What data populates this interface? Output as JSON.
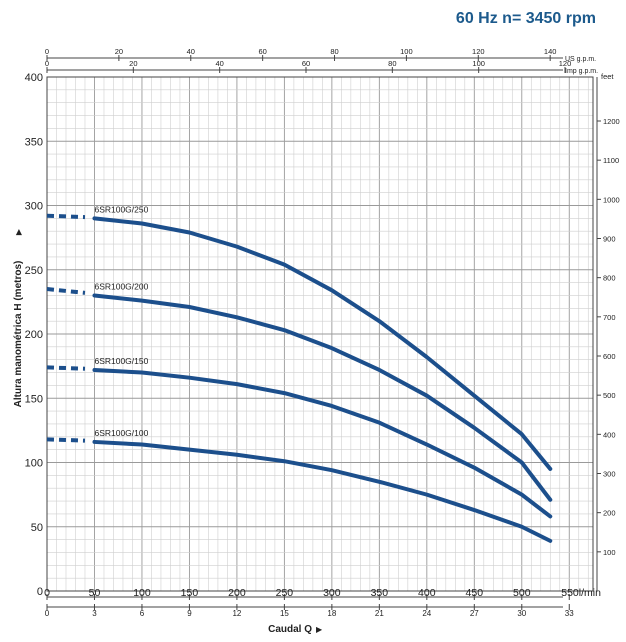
{
  "header": {
    "title": "60 Hz  n= 3450 rpm"
  },
  "chart_data": {
    "type": "line",
    "x_axis": {
      "unit": "l/min",
      "ticks": [
        0,
        50,
        100,
        150,
        200,
        250,
        300,
        350,
        400,
        450,
        500,
        550
      ],
      "last_label": "550l/min",
      "range": [
        0,
        575
      ]
    },
    "x_axis_m3h": {
      "ticks": [
        0,
        3,
        6,
        9,
        12,
        15,
        18,
        21,
        24,
        27,
        30,
        33
      ]
    },
    "x_axis_us_gpm": {
      "unit": "US g.p.m.",
      "ticks": [
        0,
        20,
        40,
        60,
        80,
        100,
        120,
        140
      ]
    },
    "x_axis_imp_gpm": {
      "unit": "Imp g.p.m.",
      "ticks": [
        0,
        20,
        40,
        60,
        80,
        100,
        120
      ]
    },
    "y_axis": {
      "label": "Altura manométrica H (metros)",
      "ticks": [
        0,
        50,
        100,
        150,
        200,
        250,
        300,
        350,
        400
      ],
      "range": [
        0,
        400
      ]
    },
    "y_axis_feet": {
      "unit": "feet",
      "ticks": [
        100,
        200,
        300,
        400,
        500,
        600,
        700,
        800,
        900,
        1000,
        1100,
        1200
      ]
    },
    "xlabel": "Caudal Q",
    "series": [
      {
        "name": "6SR100G/250",
        "dashed": [
          [
            0,
            292
          ],
          [
            40,
            291
          ]
        ],
        "points": [
          [
            50,
            290
          ],
          [
            100,
            286
          ],
          [
            150,
            279
          ],
          [
            200,
            268
          ],
          [
            250,
            254
          ],
          [
            300,
            234
          ],
          [
            350,
            210
          ],
          [
            400,
            182
          ],
          [
            450,
            152
          ],
          [
            500,
            122
          ],
          [
            530,
            95
          ]
        ]
      },
      {
        "name": "6SR100G/200",
        "dashed": [
          [
            0,
            235
          ],
          [
            40,
            232
          ]
        ],
        "points": [
          [
            50,
            230
          ],
          [
            100,
            226
          ],
          [
            150,
            221
          ],
          [
            200,
            213
          ],
          [
            250,
            203
          ],
          [
            300,
            189
          ],
          [
            350,
            172
          ],
          [
            400,
            152
          ],
          [
            450,
            127
          ],
          [
            500,
            100
          ],
          [
            530,
            71
          ]
        ]
      },
      {
        "name": "6SR100G/150",
        "dashed": [
          [
            0,
            174
          ],
          [
            40,
            173
          ]
        ],
        "points": [
          [
            50,
            172
          ],
          [
            100,
            170
          ],
          [
            150,
            166
          ],
          [
            200,
            161
          ],
          [
            250,
            154
          ],
          [
            300,
            144
          ],
          [
            350,
            131
          ],
          [
            400,
            114
          ],
          [
            450,
            96
          ],
          [
            500,
            75
          ],
          [
            530,
            58
          ]
        ]
      },
      {
        "name": "6SR100G/100",
        "dashed": [
          [
            0,
            118
          ],
          [
            40,
            117
          ]
        ],
        "points": [
          [
            50,
            116
          ],
          [
            100,
            114
          ],
          [
            150,
            110
          ],
          [
            200,
            106
          ],
          [
            250,
            101
          ],
          [
            300,
            94
          ],
          [
            350,
            85
          ],
          [
            400,
            75
          ],
          [
            450,
            63
          ],
          [
            500,
            50
          ],
          [
            530,
            39
          ]
        ]
      }
    ],
    "line_color": "#1c4f8c",
    "grid": true
  }
}
